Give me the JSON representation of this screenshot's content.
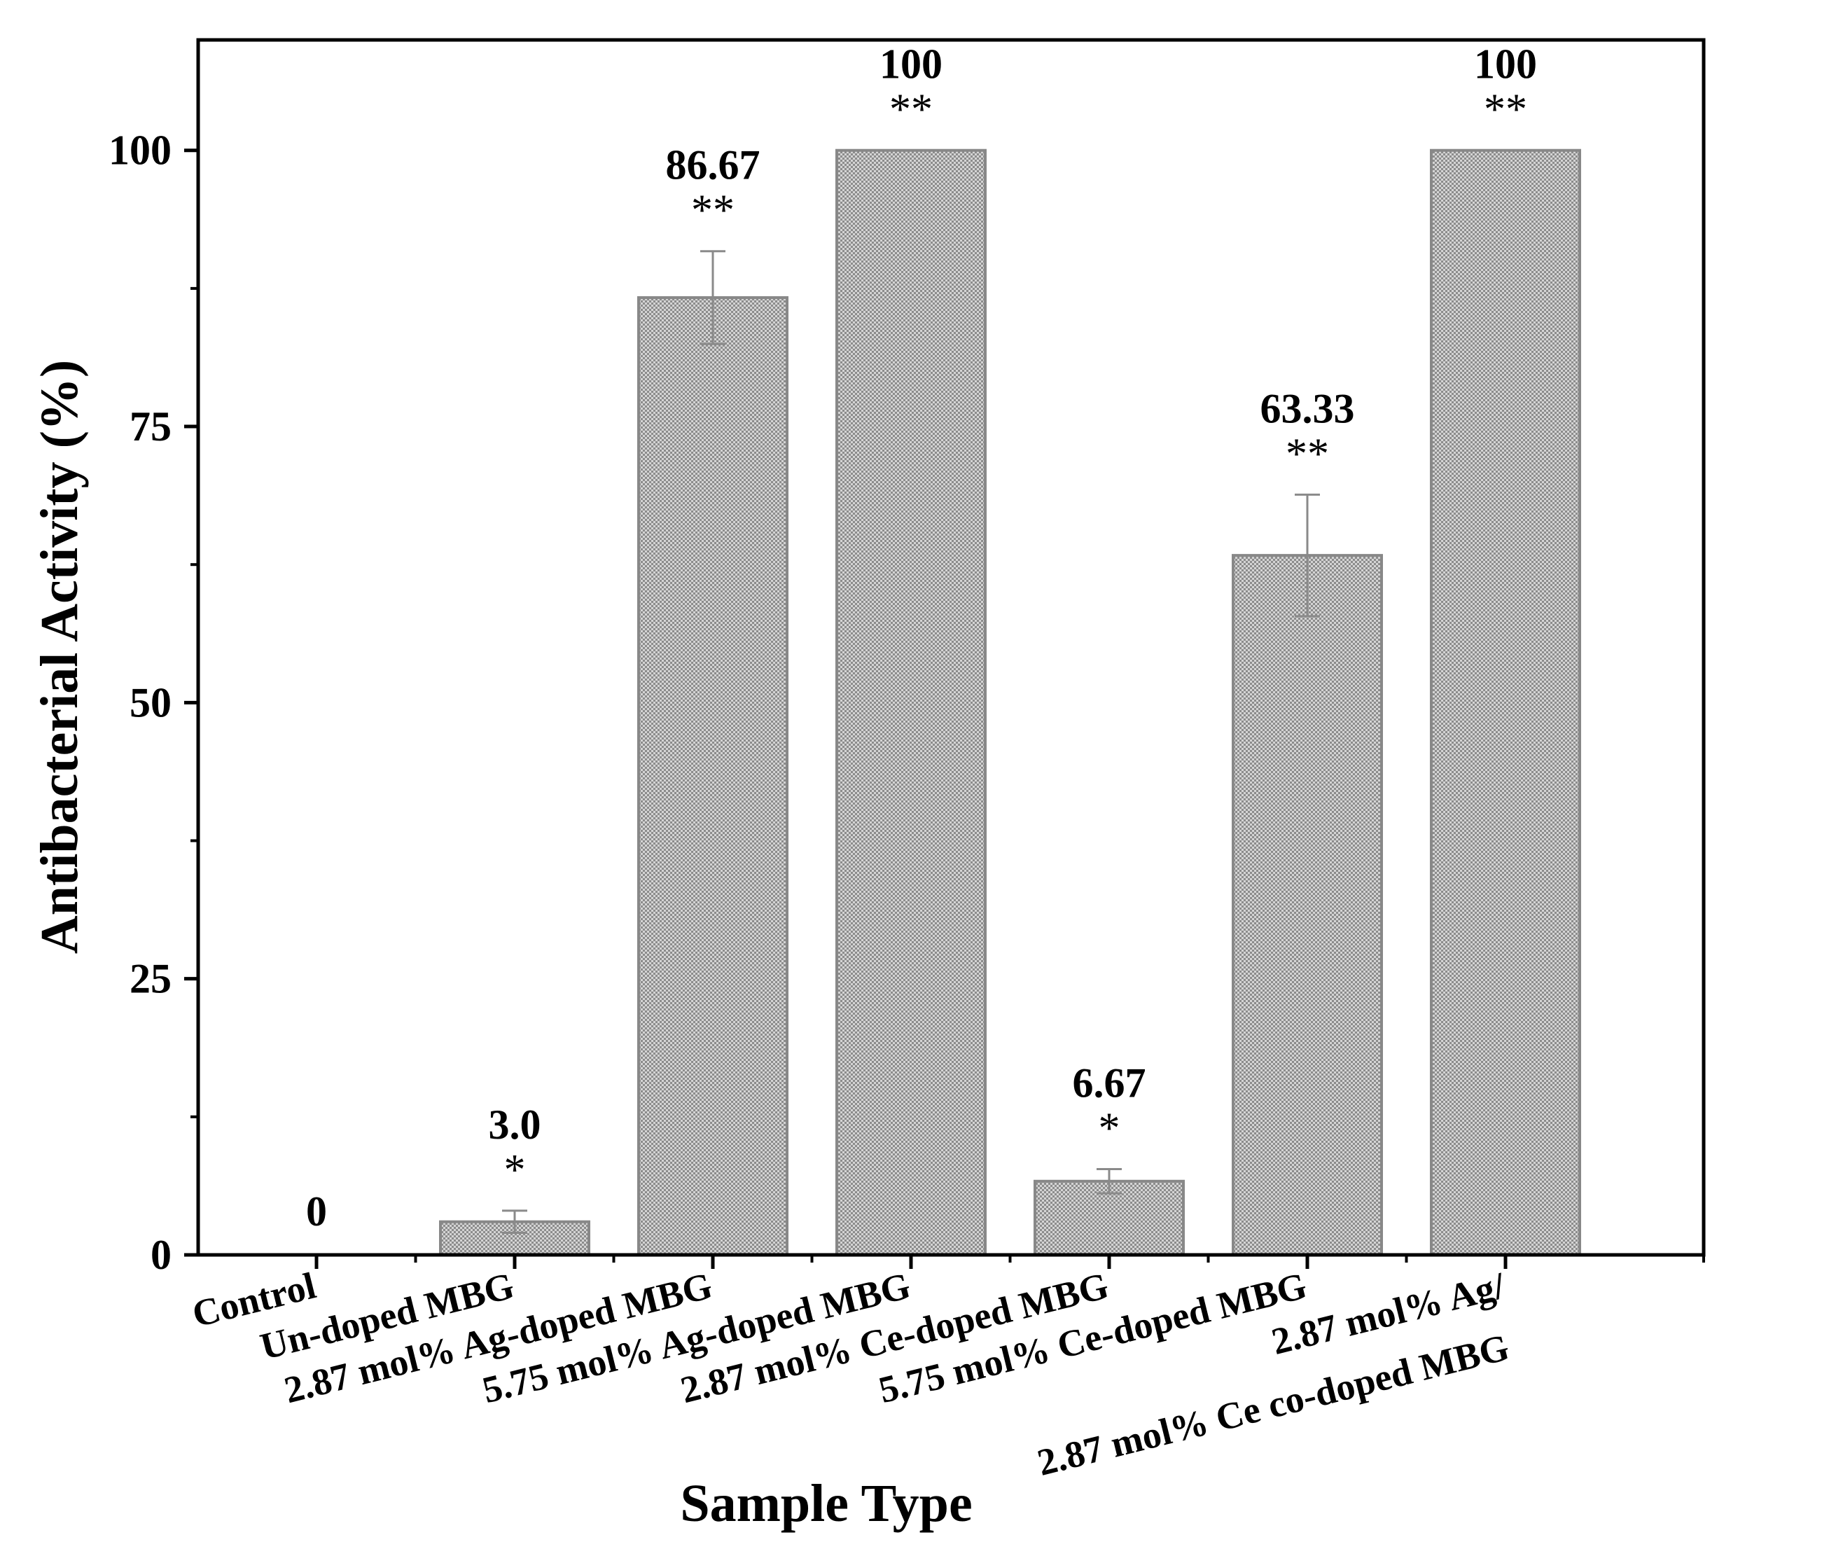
{
  "chart_data": {
    "type": "bar",
    "xlabel": "Sample Type",
    "ylabel": "Antibacterial Activity (%)",
    "ylim": [
      0,
      110
    ],
    "yticks": [
      "0",
      "25",
      "50",
      "75",
      "100"
    ],
    "categories": [
      "Control",
      "Un-doped MBG",
      "2.87 mol% Ag-doped MBG",
      "5.75 mol% Ag-doped MBG",
      "2.87 mol% Ce-doped MBG",
      "5.75 mol% Ce-doped MBG",
      "2.87 mol% Ag/ 2.87 mol% Ce co-doped MBG"
    ],
    "tick_labels": [
      [
        "Control"
      ],
      [
        "Un-doped MBG"
      ],
      [
        "2.87 mol% Ag-doped MBG"
      ],
      [
        "5.75 mol% Ag-doped MBG"
      ],
      [
        "2.87 mol% Ce-doped MBG"
      ],
      [
        "5.75 mol% Ce-doped MBG"
      ],
      [
        "2.87 mol% Ag/",
        "2.87 mol% Ce co-doped MBG"
      ]
    ],
    "values": [
      0,
      3.0,
      86.67,
      100,
      6.67,
      63.33,
      100
    ],
    "errors": [
      0,
      1.0,
      4.2,
      0,
      1.1,
      5.5,
      0
    ],
    "value_labels": [
      "0",
      "3.0",
      "86.67",
      "100",
      "6.67",
      "63.33",
      "100"
    ],
    "significance": [
      "",
      "*",
      "**",
      "**",
      "*",
      "**",
      "**"
    ],
    "colors": {
      "bar_fill": "#a9a9a9",
      "bar_stroke": "#888888",
      "pattern_dark": "#8c8c8c",
      "pattern_light": "#d4d4d4",
      "error_bar": "#8a8a8a",
      "axis": "#000000",
      "text": "#000000"
    }
  }
}
